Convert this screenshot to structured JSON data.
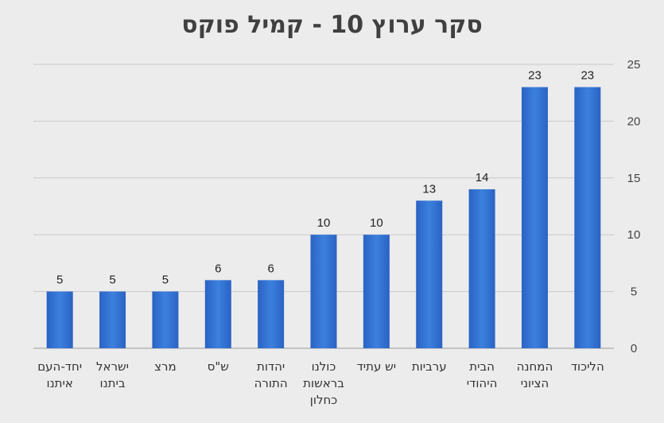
{
  "chart_data": {
    "type": "bar",
    "title": "סקר ערוץ 10 - קמיל פוקס",
    "xlabel": "",
    "ylabel": "",
    "categories": [
      "הליכוד",
      "המחנה הציוני",
      "הבית היהודי",
      "ערביות",
      "יש עתיד",
      "כולנו בראשות כחלון",
      "יהדות התורה",
      "ש\"ס",
      "מרצ",
      "ישראל ביתנו",
      "יחד-העם איתנו"
    ],
    "category_lines": [
      [
        "הליכוד"
      ],
      [
        "המחנה",
        "הציוני"
      ],
      [
        "הבית",
        "היהודי"
      ],
      [
        "ערביות"
      ],
      [
        "יש עתיד"
      ],
      [
        "כולנו",
        "בראשות",
        "כחלון"
      ],
      [
        "יהדות",
        "התורה"
      ],
      [
        "ש\"ס"
      ],
      [
        "מרצ"
      ],
      [
        "ישראל",
        "ביתנו"
      ],
      [
        "יחד-העם",
        "איתנו"
      ]
    ],
    "values": [
      23,
      23,
      14,
      13,
      10,
      10,
      6,
      6,
      5,
      5,
      5
    ],
    "ylim": [
      0,
      25
    ],
    "yticks": [
      0,
      5,
      10,
      15,
      20,
      25
    ],
    "y_axis_position": "right",
    "category_order": "right-to-left",
    "grid": true,
    "legend": "none",
    "bar_color": "#2f6fd0",
    "bar_color_light": "#5a92e6"
  }
}
